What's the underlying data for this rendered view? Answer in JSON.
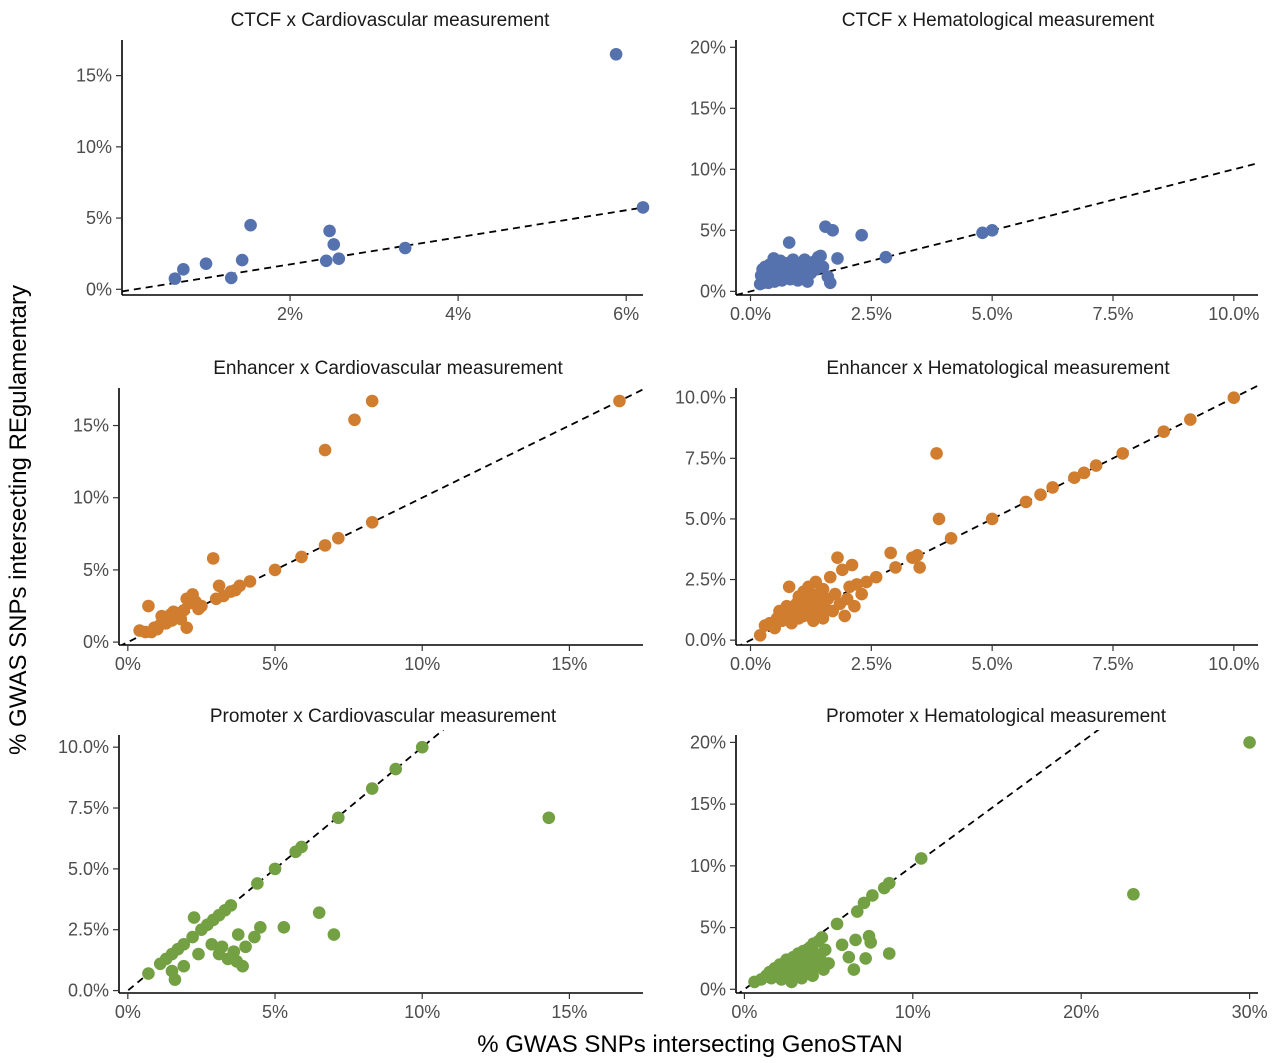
{
  "figure": {
    "xlabel": "% GWAS SNPs intersecting GenoSTAN",
    "ylabel": "% GWAS SNPs intersecting REgulamentary"
  },
  "colors": {
    "CTCF": "#5672AE",
    "Enhancer": "#D07D2F",
    "Promoter": "#72A043"
  },
  "chart_data": [
    {
      "type": "scatter",
      "title": "CTCF x Cardiovascular measurement",
      "color": "#5672AE",
      "xlim": [
        0,
        6.2
      ],
      "ylim": [
        -0.4,
        17.5
      ],
      "xticks": [
        2,
        4,
        6
      ],
      "xtick_labels": [
        "2%",
        "4%",
        "6%"
      ],
      "yticks": [
        0,
        5,
        10,
        15
      ],
      "ytick_labels": [
        "0%",
        "5%",
        "10%",
        "15%"
      ],
      "ref_line": {
        "slope": 0.95,
        "intercept": -0.15
      },
      "points": [
        [
          0.63,
          0.75
        ],
        [
          0.73,
          1.4
        ],
        [
          1.0,
          1.8
        ],
        [
          1.3,
          0.8
        ],
        [
          1.43,
          2.05
        ],
        [
          1.53,
          4.5
        ],
        [
          2.43,
          2.0
        ],
        [
          2.47,
          4.1
        ],
        [
          2.52,
          3.15
        ],
        [
          2.58,
          2.15
        ],
        [
          3.37,
          2.9
        ],
        [
          5.88,
          16.5
        ],
        [
          6.2,
          5.75
        ]
      ]
    },
    {
      "type": "scatter",
      "title": "CTCF x Hematological measurement",
      "color": "#5672AE",
      "xlim": [
        -0.3,
        10.5
      ],
      "ylim": [
        -0.3,
        20.6
      ],
      "xticks": [
        0,
        2.5,
        5,
        7.5,
        10
      ],
      "xtick_labels": [
        "0.0%",
        "2.5%",
        "5.0%",
        "7.5%",
        "10.0%"
      ],
      "yticks": [
        0,
        5,
        10,
        15,
        20
      ],
      "ytick_labels": [
        "0%",
        "5%",
        "10%",
        "15%",
        "20%"
      ],
      "ref_line": {
        "slope": 1,
        "intercept": 0
      },
      "points": [
        [
          0.2,
          0.6
        ],
        [
          0.22,
          1.3
        ],
        [
          0.25,
          1.8
        ],
        [
          0.28,
          0.9
        ],
        [
          0.3,
          2.0
        ],
        [
          0.32,
          1.1
        ],
        [
          0.35,
          1.5
        ],
        [
          0.37,
          0.7
        ],
        [
          0.4,
          2.2
        ],
        [
          0.42,
          1.2
        ],
        [
          0.45,
          1.7
        ],
        [
          0.48,
          2.7
        ],
        [
          0.5,
          0.8
        ],
        [
          0.52,
          1.4
        ],
        [
          0.55,
          2.1
        ],
        [
          0.58,
          1.0
        ],
        [
          0.6,
          1.6
        ],
        [
          0.62,
          2.5
        ],
        [
          0.65,
          0.9
        ],
        [
          0.68,
          1.3
        ],
        [
          0.7,
          1.9
        ],
        [
          0.72,
          1.1
        ],
        [
          0.75,
          2.3
        ],
        [
          0.78,
          1.5
        ],
        [
          0.8,
          4.0
        ],
        [
          0.82,
          1.0
        ],
        [
          0.85,
          1.8
        ],
        [
          0.88,
          2.6
        ],
        [
          0.9,
          1.2
        ],
        [
          0.92,
          1.6
        ],
        [
          0.95,
          2.1
        ],
        [
          0.98,
          0.9
        ],
        [
          1.0,
          1.4
        ],
        [
          1.05,
          2.2
        ],
        [
          1.1,
          1.7
        ],
        [
          1.12,
          2.6
        ],
        [
          1.15,
          1.1
        ],
        [
          1.18,
          0.8
        ],
        [
          1.2,
          2.0
        ],
        [
          1.25,
          1.5
        ],
        [
          1.3,
          2.4
        ],
        [
          1.35,
          1.8
        ],
        [
          1.4,
          2.8
        ],
        [
          1.45,
          2.9
        ],
        [
          1.5,
          2.0
        ],
        [
          1.55,
          5.3
        ],
        [
          1.6,
          1.2
        ],
        [
          1.65,
          0.7
        ],
        [
          1.7,
          5.0
        ],
        [
          1.8,
          2.7
        ],
        [
          2.3,
          4.6
        ],
        [
          2.8,
          2.8
        ],
        [
          4.8,
          4.8
        ],
        [
          5.0,
          5.0
        ]
      ]
    },
    {
      "type": "scatter",
      "title": "Enhancer x Cardiovascular measurement",
      "color": "#D07D2F",
      "xlim": [
        -0.3,
        17.5
      ],
      "ylim": [
        -0.2,
        17.6
      ],
      "xticks": [
        0,
        5,
        10,
        15
      ],
      "xtick_labels": [
        "0%",
        "5%",
        "10%",
        "15%"
      ],
      "yticks": [
        0,
        5,
        10,
        15
      ],
      "ytick_labels": [
        "0%",
        "5%",
        "10%",
        "15%"
      ],
      "ref_line": {
        "slope": 1,
        "intercept": 0
      },
      "points": [
        [
          0.4,
          0.8
        ],
        [
          0.6,
          0.7
        ],
        [
          0.7,
          2.5
        ],
        [
          0.8,
          0.7
        ],
        [
          0.9,
          1.0
        ],
        [
          1.0,
          0.9
        ],
        [
          1.1,
          1.2
        ],
        [
          1.15,
          1.8
        ],
        [
          1.3,
          1.3
        ],
        [
          1.35,
          1.6
        ],
        [
          1.45,
          1.9
        ],
        [
          1.5,
          1.5
        ],
        [
          1.55,
          2.1
        ],
        [
          1.6,
          1.7
        ],
        [
          1.7,
          2.0
        ],
        [
          1.8,
          1.6
        ],
        [
          1.9,
          2.2
        ],
        [
          2.0,
          1.0
        ],
        [
          2.0,
          3.0
        ],
        [
          2.1,
          2.7
        ],
        [
          2.2,
          3.3
        ],
        [
          2.3,
          2.8
        ],
        [
          2.4,
          2.3
        ],
        [
          2.5,
          2.5
        ],
        [
          2.9,
          5.8
        ],
        [
          3.0,
          3.0
        ],
        [
          3.1,
          3.9
        ],
        [
          3.25,
          3.2
        ],
        [
          3.5,
          3.5
        ],
        [
          3.65,
          3.6
        ],
        [
          3.8,
          3.9
        ],
        [
          4.15,
          4.2
        ],
        [
          5.0,
          5.0
        ],
        [
          5.9,
          5.9
        ],
        [
          6.7,
          6.7
        ],
        [
          6.7,
          13.3
        ],
        [
          7.15,
          7.2
        ],
        [
          7.7,
          15.4
        ],
        [
          8.3,
          8.3
        ],
        [
          8.3,
          16.7
        ],
        [
          16.7,
          16.7
        ]
      ]
    },
    {
      "type": "scatter",
      "title": "Enhancer x Hematological measurement",
      "color": "#D07D2F",
      "xlim": [
        -0.3,
        10.5
      ],
      "ylim": [
        -0.2,
        10.4
      ],
      "xticks": [
        0,
        2.5,
        5,
        7.5,
        10
      ],
      "xtick_labels": [
        "0.0%",
        "2.5%",
        "5.0%",
        "7.5%",
        "10.0%"
      ],
      "yticks": [
        0,
        2.5,
        5,
        7.5,
        10
      ],
      "ytick_labels": [
        "0.0%",
        "2.5%",
        "5.0%",
        "7.5%",
        "10.0%"
      ],
      "ref_line": {
        "slope": 1,
        "intercept": 0
      },
      "points": [
        [
          0.2,
          0.2
        ],
        [
          0.3,
          0.6
        ],
        [
          0.4,
          0.7
        ],
        [
          0.5,
          0.5
        ],
        [
          0.55,
          0.9
        ],
        [
          0.6,
          1.2
        ],
        [
          0.65,
          0.8
        ],
        [
          0.7,
          1.0
        ],
        [
          0.75,
          1.4
        ],
        [
          0.8,
          2.2
        ],
        [
          0.85,
          0.7
        ],
        [
          0.9,
          1.1
        ],
        [
          0.95,
          1.5
        ],
        [
          1.0,
          0.9
        ],
        [
          1.0,
          1.8
        ],
        [
          1.05,
          1.3
        ],
        [
          1.1,
          1.0
        ],
        [
          1.1,
          2.0
        ],
        [
          1.15,
          1.6
        ],
        [
          1.2,
          1.2
        ],
        [
          1.2,
          2.2
        ],
        [
          1.25,
          1.8
        ],
        [
          1.3,
          0.8
        ],
        [
          1.3,
          1.4
        ],
        [
          1.35,
          2.4
        ],
        [
          1.4,
          1.1
        ],
        [
          1.4,
          1.9
        ],
        [
          1.45,
          1.5
        ],
        [
          1.5,
          2.1
        ],
        [
          1.5,
          0.9
        ],
        [
          1.55,
          1.3
        ],
        [
          1.6,
          1.7
        ],
        [
          1.65,
          2.6
        ],
        [
          1.7,
          1.2
        ],
        [
          1.75,
          1.9
        ],
        [
          1.8,
          3.4
        ],
        [
          1.85,
          1.5
        ],
        [
          1.9,
          2.9
        ],
        [
          1.95,
          1.0
        ],
        [
          2.0,
          1.7
        ],
        [
          2.05,
          2.2
        ],
        [
          2.1,
          3.1
        ],
        [
          2.15,
          1.4
        ],
        [
          2.2,
          2.3
        ],
        [
          2.3,
          1.9
        ],
        [
          2.4,
          2.4
        ],
        [
          2.6,
          2.6
        ],
        [
          2.9,
          3.6
        ],
        [
          3.0,
          3.0
        ],
        [
          3.35,
          3.4
        ],
        [
          3.45,
          3.5
        ],
        [
          3.5,
          3.0
        ],
        [
          3.85,
          7.7
        ],
        [
          3.9,
          5.0
        ],
        [
          4.15,
          4.2
        ],
        [
          5.0,
          5.0
        ],
        [
          5.7,
          5.7
        ],
        [
          6.0,
          6.0
        ],
        [
          6.25,
          6.3
        ],
        [
          6.7,
          6.7
        ],
        [
          6.9,
          6.9
        ],
        [
          7.15,
          7.2
        ],
        [
          7.7,
          7.7
        ],
        [
          8.55,
          8.6
        ],
        [
          9.1,
          9.1
        ],
        [
          10.0,
          10.0
        ]
      ]
    },
    {
      "type": "scatter",
      "title": "Promoter x Cardiovascular measurement",
      "color": "#72A043",
      "xlim": [
        -0.3,
        17.5
      ],
      "ylim": [
        -0.1,
        10.5
      ],
      "xticks": [
        0,
        5,
        10,
        15
      ],
      "xtick_labels": [
        "0%",
        "5%",
        "10%",
        "15%"
      ],
      "yticks": [
        0,
        2.5,
        5,
        7.5,
        10
      ],
      "ytick_labels": [
        "0.0%",
        "2.5%",
        "5.0%",
        "7.5%",
        "10.0%"
      ],
      "ref_line": {
        "slope": 1,
        "intercept": 0
      },
      "points": [
        [
          0.7,
          0.7
        ],
        [
          1.1,
          1.1
        ],
        [
          1.3,
          1.3
        ],
        [
          1.5,
          0.8
        ],
        [
          1.5,
          1.5
        ],
        [
          1.6,
          0.45
        ],
        [
          1.7,
          1.7
        ],
        [
          1.9,
          1.0
        ],
        [
          1.9,
          1.9
        ],
        [
          2.2,
          2.2
        ],
        [
          2.25,
          3.0
        ],
        [
          2.4,
          1.5
        ],
        [
          2.5,
          2.5
        ],
        [
          2.7,
          2.7
        ],
        [
          2.85,
          1.9
        ],
        [
          2.9,
          2.9
        ],
        [
          3.1,
          1.5
        ],
        [
          3.1,
          3.1
        ],
        [
          3.2,
          1.8
        ],
        [
          3.3,
          3.3
        ],
        [
          3.4,
          1.3
        ],
        [
          3.5,
          3.5
        ],
        [
          3.6,
          1.6
        ],
        [
          3.7,
          1.2
        ],
        [
          3.75,
          2.3
        ],
        [
          3.9,
          1.0
        ],
        [
          4.0,
          1.8
        ],
        [
          4.3,
          2.2
        ],
        [
          4.4,
          4.4
        ],
        [
          4.5,
          2.6
        ],
        [
          5.0,
          5.0
        ],
        [
          5.3,
          2.6
        ],
        [
          5.7,
          5.7
        ],
        [
          5.9,
          5.9
        ],
        [
          6.5,
          3.2
        ],
        [
          7.0,
          2.3
        ],
        [
          7.15,
          7.1
        ],
        [
          8.3,
          8.3
        ],
        [
          9.1,
          9.1
        ],
        [
          10.0,
          10.0
        ],
        [
          14.3,
          7.1
        ]
      ]
    },
    {
      "type": "scatter",
      "title": "Promoter x Hematological measurement",
      "color": "#72A043",
      "xlim": [
        -0.5,
        30.5
      ],
      "ylim": [
        -0.3,
        20.6
      ],
      "xticks": [
        0,
        10,
        20,
        30
      ],
      "xtick_labels": [
        "0%",
        "10%",
        "20%",
        "30%"
      ],
      "yticks": [
        0,
        5,
        10,
        15,
        20
      ],
      "ytick_labels": [
        "0%",
        "5%",
        "10%",
        "15%",
        "20%"
      ],
      "ref_line": {
        "slope": 1,
        "intercept": 0
      },
      "points": [
        [
          0.6,
          0.6
        ],
        [
          1.0,
          0.8
        ],
        [
          1.3,
          1.1
        ],
        [
          1.5,
          1.4
        ],
        [
          1.6,
          0.9
        ],
        [
          1.8,
          1.7
        ],
        [
          2.0,
          1.2
        ],
        [
          2.1,
          2.0
        ],
        [
          2.2,
          0.8
        ],
        [
          2.3,
          1.5
        ],
        [
          2.5,
          2.4
        ],
        [
          2.6,
          1.0
        ],
        [
          2.7,
          1.9
        ],
        [
          2.8,
          0.6
        ],
        [
          2.9,
          2.6
        ],
        [
          3.0,
          1.3
        ],
        [
          3.1,
          2.2
        ],
        [
          3.2,
          2.9
        ],
        [
          3.3,
          1.7
        ],
        [
          3.4,
          0.9
        ],
        [
          3.5,
          3.1
        ],
        [
          3.6,
          2.0
        ],
        [
          3.7,
          2.7
        ],
        [
          3.8,
          1.4
        ],
        [
          3.9,
          3.4
        ],
        [
          4.0,
          2.3
        ],
        [
          4.05,
          1.1
        ],
        [
          4.1,
          3.7
        ],
        [
          4.2,
          2.9
        ],
        [
          4.3,
          1.9
        ],
        [
          4.4,
          3.9
        ],
        [
          4.5,
          2.5
        ],
        [
          4.6,
          4.2
        ],
        [
          4.7,
          1.6
        ],
        [
          4.8,
          3.2
        ],
        [
          5.0,
          2.1
        ],
        [
          5.5,
          5.3
        ],
        [
          5.8,
          3.6
        ],
        [
          6.2,
          2.6
        ],
        [
          6.5,
          1.6
        ],
        [
          6.6,
          4.0
        ],
        [
          7.2,
          2.5
        ],
        [
          7.4,
          4.3
        ],
        [
          7.5,
          3.8
        ],
        [
          6.7,
          6.3
        ],
        [
          7.1,
          7.0
        ],
        [
          7.6,
          7.6
        ],
        [
          8.3,
          8.2
        ],
        [
          8.6,
          8.6
        ],
        [
          8.6,
          2.9
        ],
        [
          10.5,
          10.6
        ],
        [
          23.1,
          7.7
        ],
        [
          30.0,
          20.0
        ]
      ]
    }
  ]
}
